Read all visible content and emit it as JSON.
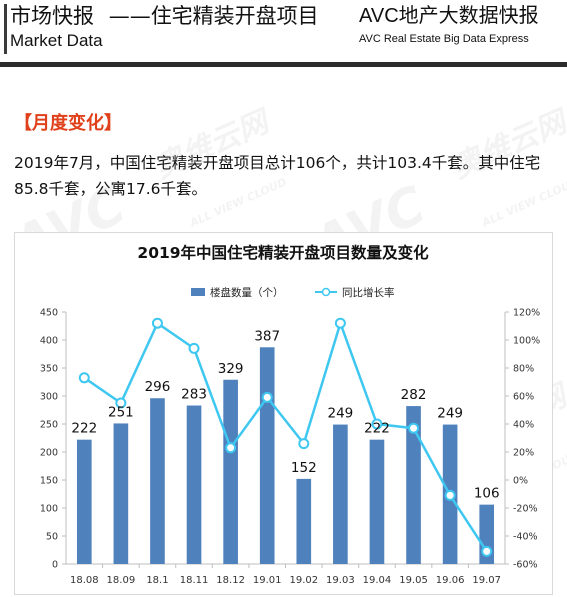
{
  "header": {
    "title_cn": "市场快报",
    "subtitle_cn": "——住宅精装开盘项目",
    "title_en": "Market Data",
    "brand_cn": "AVC地产大数据快报",
    "brand_en": "AVC  Real Estate Big Data Express"
  },
  "section": {
    "heading": "【月度变化】",
    "body": "2019年7月，中国住宅精装开盘项目总计106个，共计103.4千套。其中住宅85.8千套，公寓17.6千套。"
  },
  "watermark": {
    "mark": "AVC",
    "cn": "奥维云网",
    "en": "ALL VIEW CLOUD"
  },
  "colors": {
    "bar": "#4f81bd",
    "line": "#3ec7f0",
    "heading": "#e0401a",
    "rule": "#2b2b2b"
  },
  "chart_data": {
    "type": "bar",
    "title": "2019年中国住宅精装开盘项目数量及变化",
    "categories": [
      "18.08",
      "18.09",
      "18.1",
      "18.11",
      "18.12",
      "19.01",
      "19.02",
      "19.03",
      "19.04",
      "19.05",
      "19.06",
      "19.07"
    ],
    "series": [
      {
        "name": "楼盘数量（个）",
        "type": "bar",
        "axis": "left",
        "values": [
          222,
          251,
          296,
          283,
          329,
          387,
          152,
          249,
          222,
          282,
          249,
          106
        ],
        "data_labels": [
          "222",
          "251",
          "296",
          "283",
          "329",
          "387",
          "152",
          "249",
          "222",
          "282",
          "249",
          "106"
        ]
      },
      {
        "name": "同比增长率",
        "type": "line",
        "axis": "right",
        "values": [
          73,
          55,
          112,
          94,
          23,
          59,
          26,
          112,
          40,
          37,
          -11,
          -51
        ]
      }
    ],
    "y_left": {
      "min": 0,
      "max": 450,
      "step": 50,
      "ticks": [
        "0",
        "50",
        "100",
        "150",
        "200",
        "250",
        "300",
        "350",
        "400",
        "450"
      ]
    },
    "y_right": {
      "min": -60,
      "max": 120,
      "step": 20,
      "ticks": [
        "-60%",
        "-40%",
        "-20%",
        "0%",
        "20%",
        "40%",
        "60%",
        "80%",
        "100%",
        "120%"
      ]
    },
    "legend_position": "top-center",
    "grid": false
  }
}
